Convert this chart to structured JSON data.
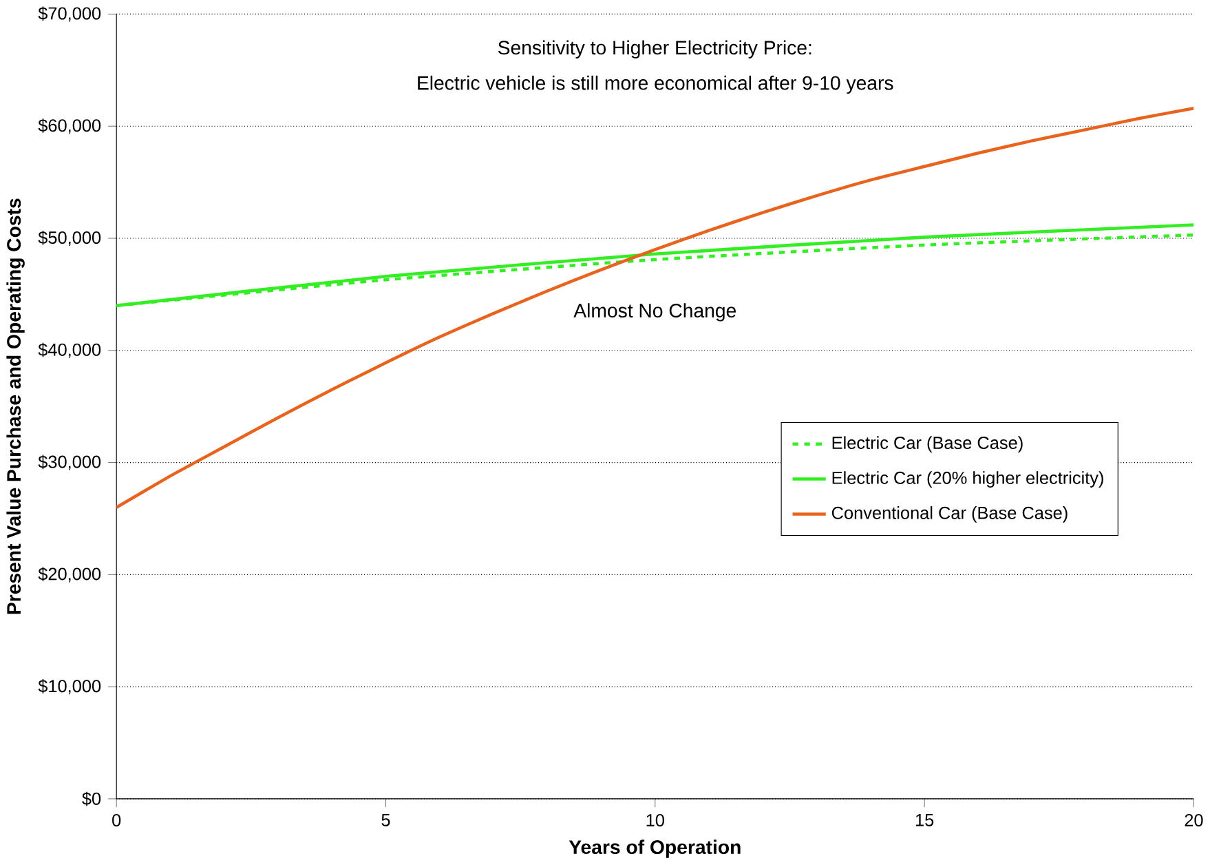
{
  "chart_data": {
    "type": "line",
    "xlabel": "Years of Operation",
    "ylabel": "Present Value Purchase and Operating Costs",
    "annotations": [
      "Sensitivity to Higher Electricity Price:",
      "Electric vehicle is still more economical after 9-10 years",
      "Almost No Change"
    ],
    "xlim": [
      0,
      20
    ],
    "xticks": [
      0,
      5,
      10,
      15,
      20
    ],
    "ylim": [
      0,
      70000
    ],
    "yticks": [
      {
        "value": 0,
        "label": "$0"
      },
      {
        "value": 10000,
        "label": "$10,000"
      },
      {
        "value": 20000,
        "label": "$20,000"
      },
      {
        "value": 30000,
        "label": "$30,000"
      },
      {
        "value": 40000,
        "label": "$40,000"
      },
      {
        "value": 50000,
        "label": "$50,000"
      },
      {
        "value": 60000,
        "label": "$60,000"
      },
      {
        "value": 70000,
        "label": "$70,000"
      }
    ],
    "grid": "y",
    "legend": "right",
    "marker": "none",
    "series": [
      {
        "name": "Electric Car (Base Case)",
        "color": "#33ee22",
        "line_style": "dashed",
        "x": [
          0,
          5,
          10,
          15,
          20
        ],
        "values": [
          44000,
          46300,
          48100,
          49400,
          50300
        ]
      },
      {
        "name": "Electric Car (20% higher electricity)",
        "color": "#33ee22",
        "line_style": "solid",
        "x": [
          0,
          5,
          10,
          15,
          20
        ],
        "values": [
          44000,
          46600,
          48600,
          50100,
          51200
        ]
      },
      {
        "name": "Conventional Car (Base Case)",
        "color": "#e8641e",
        "line_style": "solid",
        "x": [
          0,
          1,
          2,
          3,
          4,
          5,
          6,
          7,
          8,
          9,
          10,
          11,
          12,
          13,
          14,
          15,
          16,
          17,
          18,
          19,
          20
        ],
        "values": [
          26000,
          28800,
          31400,
          34000,
          36500,
          38900,
          41200,
          43300,
          45300,
          47200,
          49000,
          50700,
          52300,
          53800,
          55200,
          56400,
          57600,
          58700,
          59700,
          60700,
          61600
        ]
      }
    ]
  }
}
